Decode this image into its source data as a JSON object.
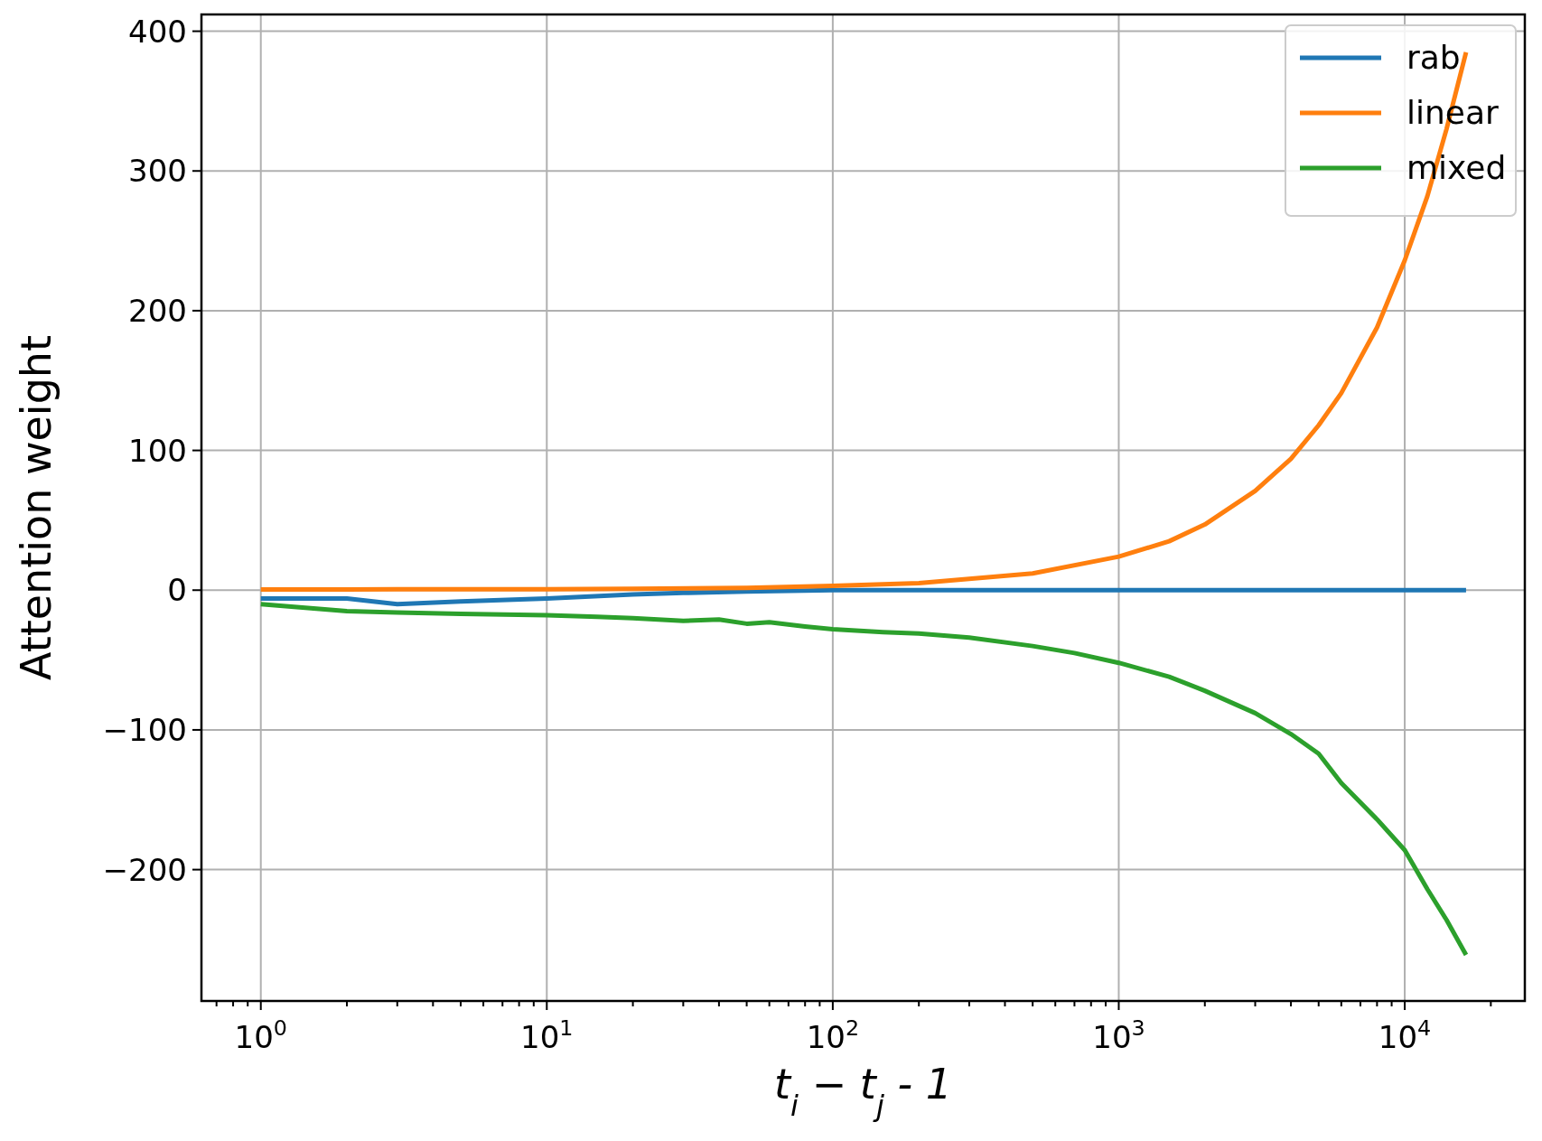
{
  "chart_data": {
    "type": "line",
    "xlabel": "t$_{i}$ − t$_{j}$ - 1",
    "ylabel": "Attention weight",
    "log": "x",
    "grid": true,
    "legend": "top right",
    "line_style": "solid",
    "marker": "none",
    "xlim": [
      0.62,
      26300
    ],
    "ylim": [
      -294,
      412
    ],
    "xticks": [
      {
        "value": 0.7,
        "label": null
      },
      {
        "value": 0.8,
        "label": null
      },
      {
        "value": 0.9,
        "label": null
      },
      {
        "value": 1,
        "label": "10$^{0}$"
      },
      {
        "value": 2,
        "label": null
      },
      {
        "value": 3,
        "label": null
      },
      {
        "value": 4,
        "label": null
      },
      {
        "value": 5,
        "label": null
      },
      {
        "value": 6,
        "label": null
      },
      {
        "value": 7,
        "label": null
      },
      {
        "value": 8,
        "label": null
      },
      {
        "value": 9,
        "label": null
      },
      {
        "value": 10,
        "label": "10$^{1}$"
      },
      {
        "value": 20,
        "label": null
      },
      {
        "value": 30,
        "label": null
      },
      {
        "value": 40,
        "label": null
      },
      {
        "value": 50,
        "label": null
      },
      {
        "value": 60,
        "label": null
      },
      {
        "value": 70,
        "label": null
      },
      {
        "value": 80,
        "label": null
      },
      {
        "value": 90,
        "label": null
      },
      {
        "value": 100,
        "label": "10$^{2}$"
      },
      {
        "value": 200,
        "label": null
      },
      {
        "value": 300,
        "label": null
      },
      {
        "value": 400,
        "label": null
      },
      {
        "value": 500,
        "label": null
      },
      {
        "value": 600,
        "label": null
      },
      {
        "value": 700,
        "label": null
      },
      {
        "value": 800,
        "label": null
      },
      {
        "value": 900,
        "label": null
      },
      {
        "value": 1000,
        "label": "10$^{3}$"
      },
      {
        "value": 2000,
        "label": null
      },
      {
        "value": 3000,
        "label": null
      },
      {
        "value": 4000,
        "label": null
      },
      {
        "value": 5000,
        "label": null
      },
      {
        "value": 6000,
        "label": null
      },
      {
        "value": 7000,
        "label": null
      },
      {
        "value": 8000,
        "label": null
      },
      {
        "value": 9000,
        "label": null
      },
      {
        "value": 10000,
        "label": "10$^{4}$"
      },
      {
        "value": 20000,
        "label": null
      }
    ],
    "yticks": [
      {
        "value": -200,
        "label": "−200"
      },
      {
        "value": -100,
        "label": "−100"
      },
      0,
      100,
      200,
      300,
      400
    ],
    "series": [
      {
        "name": "rab",
        "color": "#1f77b4",
        "x": [
          1,
          2,
          3,
          5,
          10,
          20,
          30,
          50,
          100,
          1000,
          10000,
          16384
        ],
        "values": [
          -6,
          -6,
          -10,
          -8,
          -6,
          -3,
          -2,
          -1,
          0,
          0,
          0,
          0
        ]
      },
      {
        "name": "linear",
        "color": "#ff7f0e",
        "x": [
          1,
          2,
          3,
          5,
          10,
          20,
          50,
          100,
          200,
          500,
          1000,
          1500,
          2000,
          3000,
          4000,
          5000,
          6000,
          8000,
          10000,
          12000,
          14000,
          16384
        ],
        "values": [
          0.5,
          0.5,
          0.6,
          0.6,
          0.7,
          1,
          1.7,
          3,
          5,
          12,
          24,
          35,
          47,
          71,
          94,
          118,
          141,
          188,
          236,
          282,
          330,
          385
        ]
      },
      {
        "name": "mixed",
        "color": "#2ca02c",
        "x": [
          1,
          2,
          3,
          5,
          10,
          15,
          20,
          30,
          40,
          50,
          60,
          80,
          100,
          150,
          200,
          300,
          500,
          700,
          1000,
          1500,
          2000,
          3000,
          4000,
          5000,
          6000,
          8000,
          10000,
          12000,
          14000,
          16384
        ],
        "values": [
          -10,
          -15,
          -16,
          -17,
          -18,
          -19,
          -20,
          -22,
          -21,
          -24,
          -23,
          -26,
          -28,
          -30,
          -31,
          -34,
          -40,
          -45,
          -52,
          -62,
          -72,
          -88,
          -103,
          -117,
          -138,
          -164,
          -186,
          -214,
          -236,
          -261
        ]
      }
    ]
  }
}
